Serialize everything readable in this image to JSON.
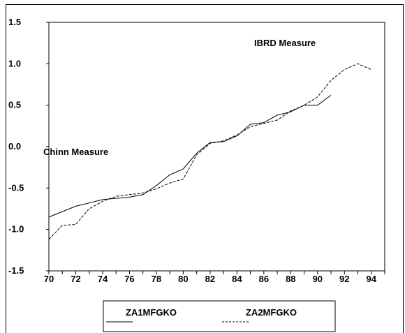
{
  "chart_data": {
    "type": "line",
    "title": "",
    "xlabel": "",
    "ylabel": "",
    "xlim": [
      70,
      95
    ],
    "ylim": [
      -1.5,
      1.5
    ],
    "x_ticks": [
      "70",
      "72",
      "74",
      "76",
      "78",
      "80",
      "82",
      "84",
      "86",
      "88",
      "90",
      "92",
      "94"
    ],
    "y_ticks": [
      "1.5",
      "1.0",
      "0.5",
      "0.0",
      "-0.5",
      "-1.0",
      "-1.5"
    ],
    "grid": false,
    "legend_position": "bottom",
    "annotations": {
      "ibrd": "IBRD Measure",
      "chinn": "Chinn Measure"
    },
    "series": [
      {
        "name": "ZA1MFGKO",
        "style": "solid",
        "x": [
          70,
          72,
          74,
          76,
          77,
          78,
          79,
          80,
          81,
          82,
          83,
          84,
          85,
          86,
          87,
          88,
          89,
          90,
          91
        ],
        "y": [
          -0.85,
          -0.72,
          -0.64,
          -0.61,
          -0.58,
          -0.47,
          -0.34,
          -0.27,
          -0.08,
          0.05,
          0.06,
          0.13,
          0.27,
          0.29,
          0.38,
          0.42,
          0.5,
          0.5,
          0.62
        ]
      },
      {
        "name": "ZA2MFGKO",
        "style": "dashed",
        "x": [
          70,
          71,
          72,
          73,
          74,
          75,
          76,
          77,
          78,
          79,
          80,
          81,
          82,
          83,
          84,
          85,
          86,
          87,
          88,
          89,
          90,
          91,
          92,
          93,
          94
        ],
        "y": [
          -1.12,
          -0.95,
          -0.94,
          -0.75,
          -0.66,
          -0.6,
          -0.58,
          -0.56,
          -0.51,
          -0.44,
          -0.39,
          -0.1,
          0.04,
          0.07,
          0.14,
          0.24,
          0.28,
          0.32,
          0.43,
          0.5,
          0.6,
          0.8,
          0.93,
          1.0,
          0.93
        ]
      }
    ]
  }
}
